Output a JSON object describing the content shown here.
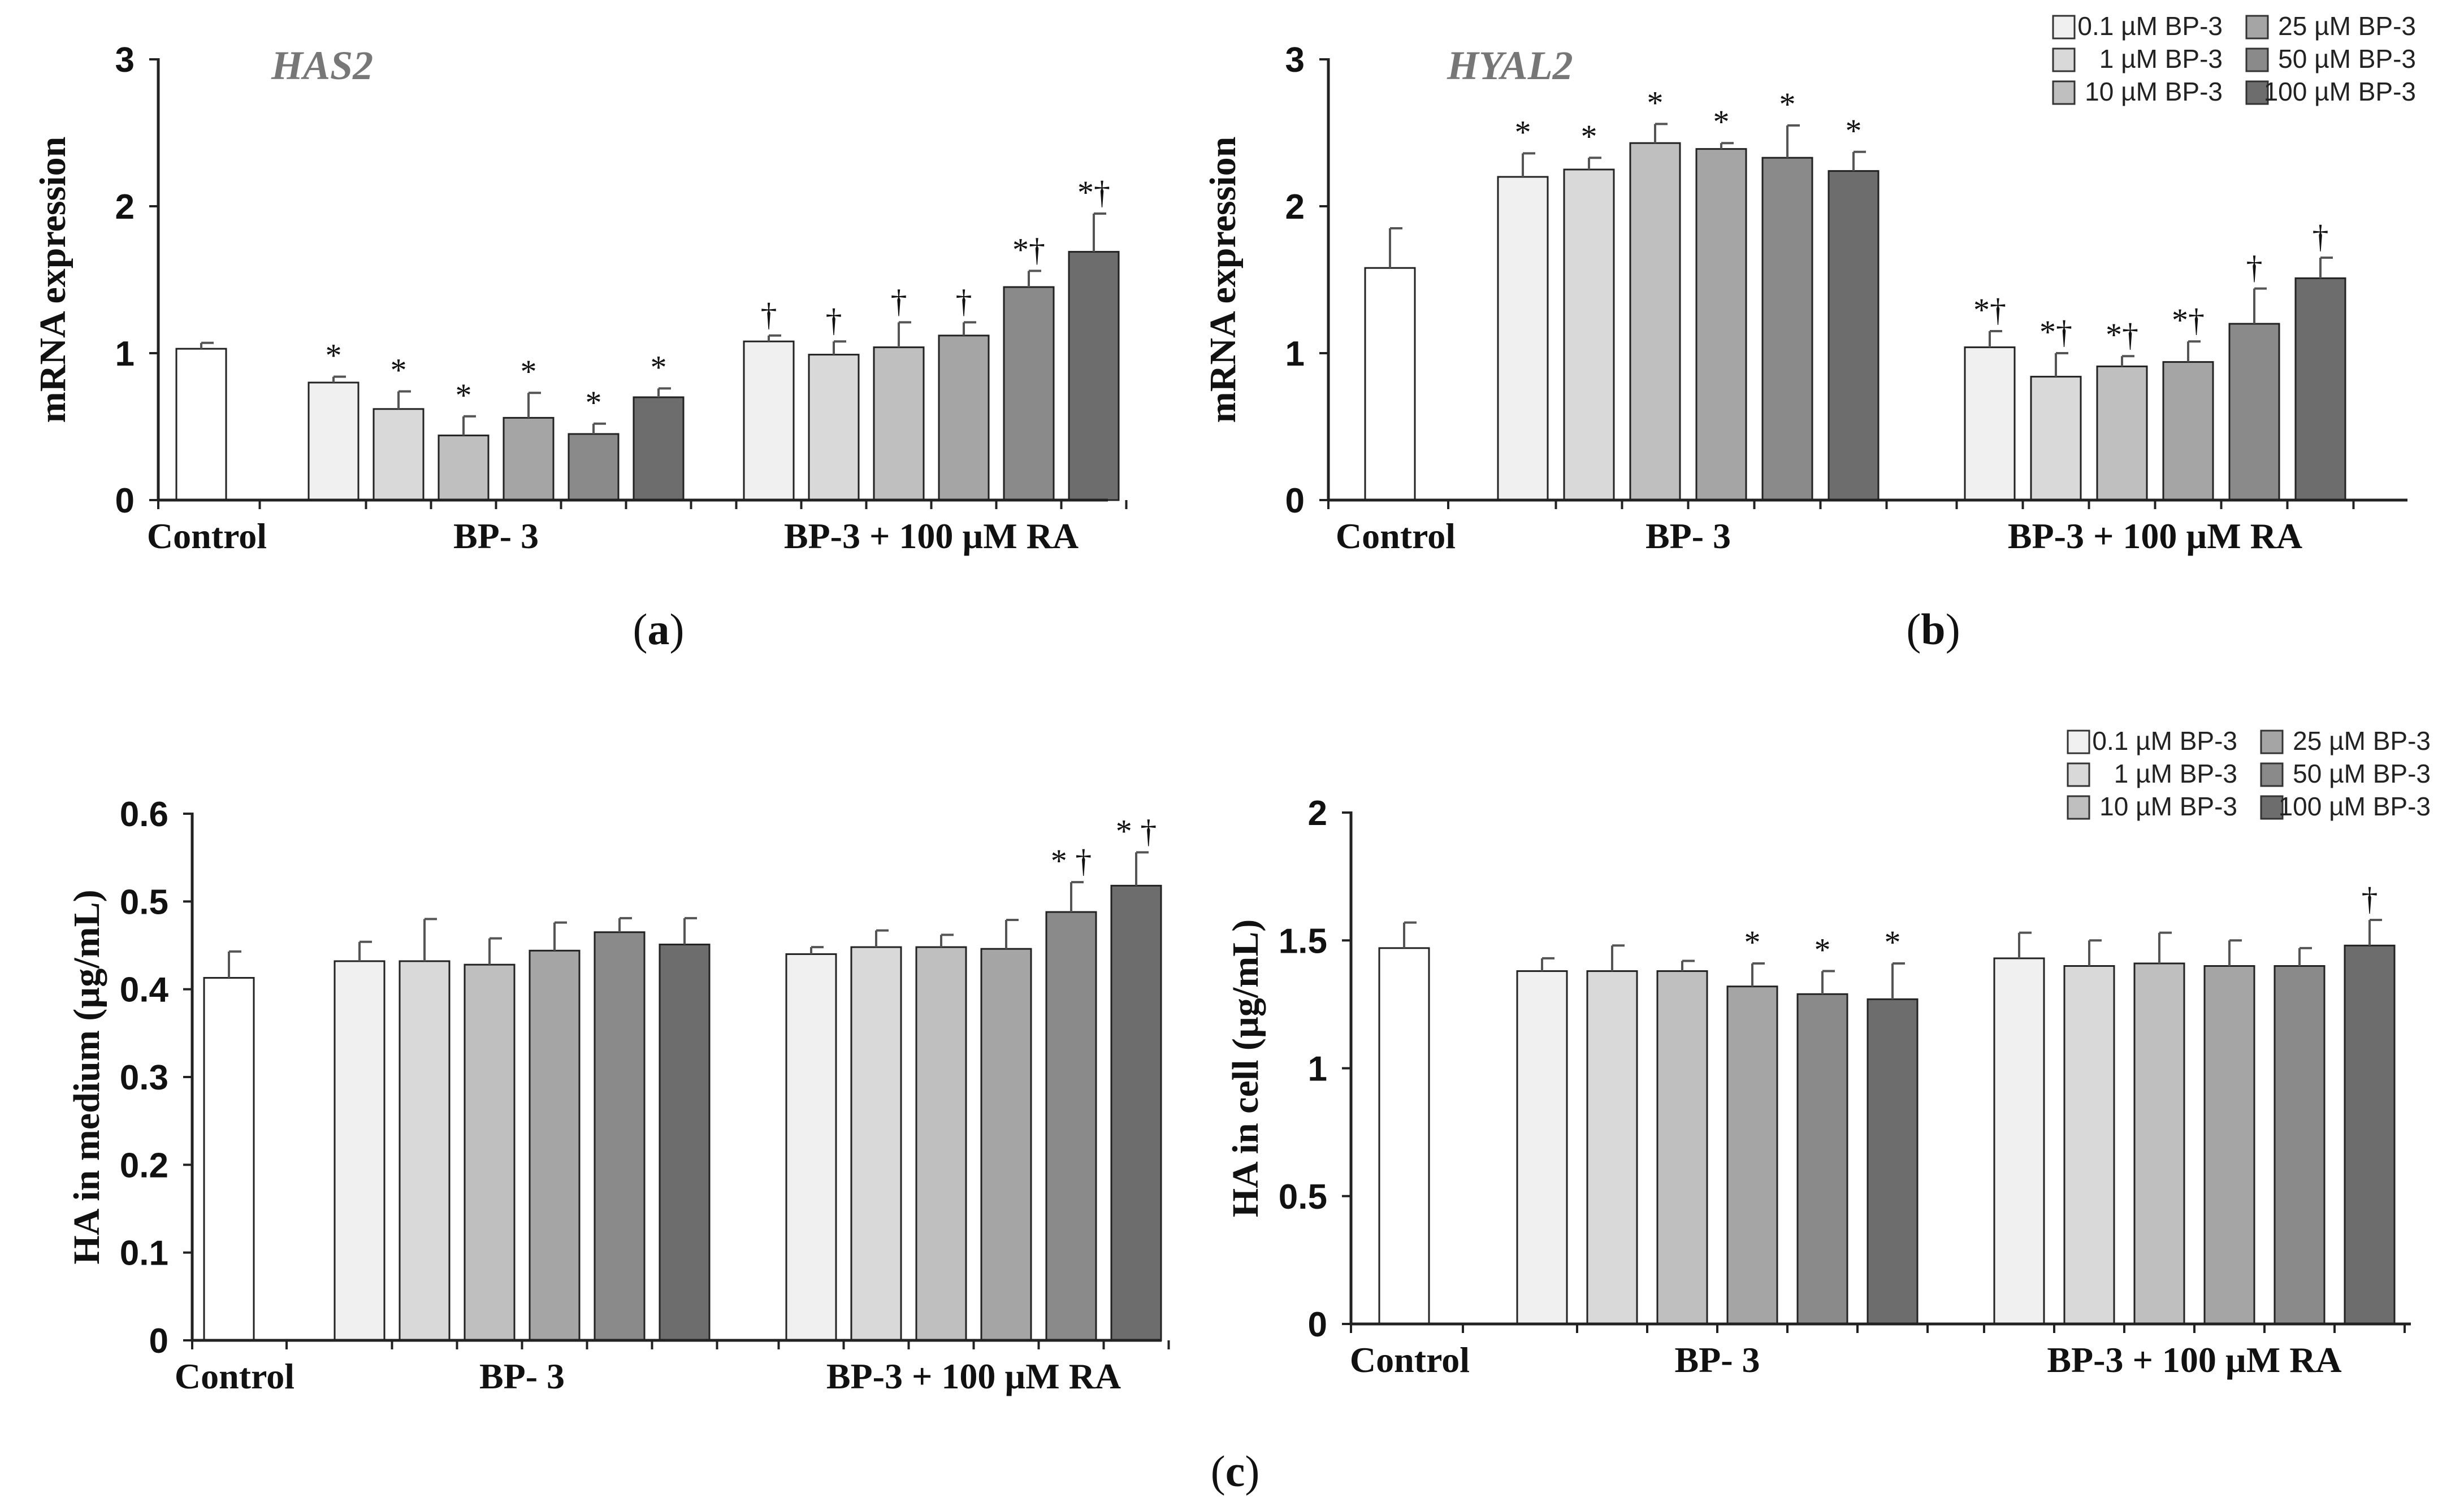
{
  "colors": {
    "control": "#ffffff",
    "bp_0_1": "#f0f0f0",
    "bp_1": "#d9d9d9",
    "bp_10": "#bfbfbf",
    "bp_25": "#a5a5a5",
    "bp_50": "#8a8a8a",
    "bp_100": "#6d6d6d"
  },
  "legend_entries": [
    "0.1 µM BP-3",
    "1 µM BP-3",
    "10 µM BP-3",
    "25 µM BP-3",
    "50 µM BP-3",
    "100 µM BP-3"
  ],
  "subplot_labels": [
    "a",
    "b",
    "c"
  ],
  "chart_data": [
    {
      "panel": "a",
      "type": "bar",
      "title": "HAS2",
      "ylabel": "mRNA expression",
      "ylim": [
        0,
        3
      ],
      "yticks": [
        0,
        1,
        2,
        3
      ],
      "legend": false,
      "groups": [
        "Control",
        "BP- 3",
        "BP-3 + 100 µM RA"
      ],
      "series": [
        {
          "name": "Control",
          "values": [
            1.03
          ],
          "errors": [
            0.04
          ],
          "marks": [
            ""
          ]
        },
        {
          "name": "BP-3",
          "values": [
            0.8,
            0.62,
            0.44,
            0.56,
            0.45,
            0.7
          ],
          "errors": [
            0.04,
            0.12,
            0.13,
            0.17,
            0.07,
            0.06
          ],
          "marks": [
            "*",
            "*",
            "*",
            "*",
            "*",
            "*"
          ]
        },
        {
          "name": "BP-3 + 100 µM RA",
          "values": [
            1.08,
            0.99,
            1.04,
            1.12,
            1.45,
            1.69
          ],
          "errors": [
            0.04,
            0.09,
            0.17,
            0.09,
            0.11,
            0.26
          ],
          "marks": [
            "†",
            "†",
            "†",
            "†",
            "*†",
            "*†"
          ]
        }
      ]
    },
    {
      "panel": "b",
      "type": "bar",
      "title": "HYAL2",
      "ylabel": "mRNA expression",
      "ylim": [
        0,
        3
      ],
      "yticks": [
        0,
        1,
        2,
        3
      ],
      "legend": true,
      "groups": [
        "Control",
        "BP- 3",
        "BP-3 + 100 µM RA"
      ],
      "series": [
        {
          "name": "Control",
          "values": [
            1.58
          ],
          "errors": [
            0.27
          ],
          "marks": [
            ""
          ]
        },
        {
          "name": "BP-3",
          "values": [
            2.2,
            2.25,
            2.43,
            2.39,
            2.33,
            2.24
          ],
          "errors": [
            0.16,
            0.08,
            0.13,
            0.04,
            0.22,
            0.13
          ],
          "marks": [
            "*",
            "*",
            "*",
            "*",
            "*",
            "*"
          ]
        },
        {
          "name": "BP-3 + 100 µM RA",
          "values": [
            1.04,
            0.84,
            0.91,
            0.94,
            1.2,
            1.51
          ],
          "errors": [
            0.11,
            0.16,
            0.07,
            0.14,
            0.24,
            0.14
          ],
          "marks": [
            "*†",
            "*†",
            "*†",
            "*†",
            "†",
            "†"
          ]
        }
      ]
    },
    {
      "panel": "c-left",
      "type": "bar",
      "title": "",
      "ylabel": "HA in medium (µg/mL)",
      "ylim": [
        0,
        0.6
      ],
      "yticks": [
        0,
        0.1,
        0.2,
        0.3,
        0.4,
        0.5,
        0.6
      ],
      "legend": false,
      "groups": [
        "Control",
        "BP- 3",
        "BP-3 + 100 µM RA"
      ],
      "series": [
        {
          "name": "Control",
          "values": [
            0.413
          ],
          "errors": [
            0.03
          ],
          "marks": [
            ""
          ]
        },
        {
          "name": "BP-3",
          "values": [
            0.432,
            0.432,
            0.428,
            0.444,
            0.465,
            0.451
          ],
          "errors": [
            0.022,
            0.048,
            0.03,
            0.032,
            0.016,
            0.03
          ],
          "marks": [
            "",
            "",
            "",
            "",
            "",
            ""
          ]
        },
        {
          "name": "BP-3 + 100 µM RA",
          "values": [
            0.44,
            0.448,
            0.448,
            0.446,
            0.488,
            0.518
          ],
          "errors": [
            0.008,
            0.019,
            0.014,
            0.033,
            0.034,
            0.038
          ],
          "marks": [
            "",
            "",
            "",
            "",
            "* †",
            "* †"
          ]
        }
      ]
    },
    {
      "panel": "c-right",
      "type": "bar",
      "title": "",
      "ylabel": "HA in cell (µg/mL)",
      "ylim": [
        0,
        2
      ],
      "yticks": [
        0,
        0.5,
        1,
        1.5,
        2
      ],
      "legend": true,
      "groups": [
        "Control",
        "BP- 3",
        "BP-3 + 100 µM RA"
      ],
      "series": [
        {
          "name": "Control",
          "values": [
            1.47
          ],
          "errors": [
            0.1
          ],
          "marks": [
            ""
          ]
        },
        {
          "name": "BP-3",
          "values": [
            1.38,
            1.38,
            1.38,
            1.32,
            1.29,
            1.27
          ],
          "errors": [
            0.05,
            0.1,
            0.04,
            0.09,
            0.09,
            0.14
          ],
          "marks": [
            "",
            "",
            "",
            "*",
            "*",
            "*"
          ]
        },
        {
          "name": "BP-3 + 100 µM RA",
          "values": [
            1.43,
            1.4,
            1.41,
            1.4,
            1.4,
            1.48
          ],
          "errors": [
            0.1,
            0.1,
            0.12,
            0.1,
            0.07,
            0.1
          ],
          "marks": [
            "",
            "",
            "",
            "",
            "",
            "†"
          ]
        }
      ]
    }
  ]
}
